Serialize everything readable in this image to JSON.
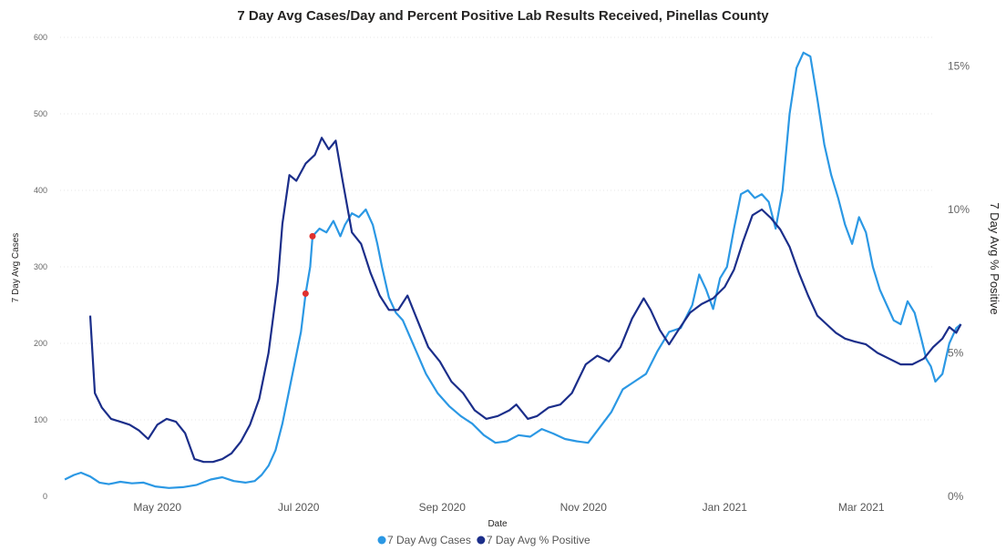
{
  "chart_data": {
    "type": "line",
    "title": "7 Day Avg Cases/Day and Percent Positive Lab Results Received, Pinellas County",
    "xlabel": "Date",
    "ylabel": "7 Day Avg Cases",
    "y2label": "7 Day Avg % Positive",
    "xlim": [
      "2020-03-20",
      "2021-04-01"
    ],
    "ylim": [
      0,
      600
    ],
    "y2lim": [
      0,
      16
    ],
    "y_ticks": [
      "0",
      "100",
      "200",
      "300",
      "400",
      "500",
      "600"
    ],
    "y2_ticks": [
      "0%",
      "5%",
      "10%",
      "15%"
    ],
    "x_ticks": [
      {
        "label": "May 2020",
        "date": "2020-05-01"
      },
      {
        "label": "Jul 2020",
        "date": "2020-07-01"
      },
      {
        "label": "Sep 2020",
        "date": "2020-09-01"
      },
      {
        "label": "Nov 2020",
        "date": "2020-11-01"
      },
      {
        "label": "Jan 2021",
        "date": "2021-01-01"
      },
      {
        "label": "Mar 2021",
        "date": "2021-03-01"
      }
    ],
    "grid": true,
    "legend_position": "bottom",
    "series": [
      {
        "name": "7 Day Avg Cases",
        "axis": "left",
        "color": "#2B98E4",
        "points": [
          [
            "2020-03-22",
            22
          ],
          [
            "2020-03-26",
            28
          ],
          [
            "2020-03-29",
            31
          ],
          [
            "2020-04-02",
            26
          ],
          [
            "2020-04-06",
            18
          ],
          [
            "2020-04-10",
            16
          ],
          [
            "2020-04-15",
            19
          ],
          [
            "2020-04-20",
            17
          ],
          [
            "2020-04-25",
            18
          ],
          [
            "2020-04-30",
            13
          ],
          [
            "2020-05-06",
            11
          ],
          [
            "2020-05-12",
            12
          ],
          [
            "2020-05-18",
            15
          ],
          [
            "2020-05-24",
            22
          ],
          [
            "2020-05-29",
            25
          ],
          [
            "2020-06-03",
            20
          ],
          [
            "2020-06-08",
            18
          ],
          [
            "2020-06-12",
            20
          ],
          [
            "2020-06-15",
            28
          ],
          [
            "2020-06-18",
            40
          ],
          [
            "2020-06-21",
            60
          ],
          [
            "2020-06-24",
            95
          ],
          [
            "2020-06-27",
            140
          ],
          [
            "2020-06-30",
            185
          ],
          [
            "2020-07-02",
            215
          ],
          [
            "2020-07-04",
            265
          ],
          [
            "2020-07-06",
            300
          ],
          [
            "2020-07-07",
            340
          ],
          [
            "2020-07-10",
            350
          ],
          [
            "2020-07-13",
            345
          ],
          [
            "2020-07-16",
            360
          ],
          [
            "2020-07-19",
            340
          ],
          [
            "2020-07-21",
            355
          ],
          [
            "2020-07-24",
            370
          ],
          [
            "2020-07-27",
            365
          ],
          [
            "2020-07-30",
            375
          ],
          [
            "2020-08-02",
            355
          ],
          [
            "2020-08-04",
            330
          ],
          [
            "2020-08-06",
            300
          ],
          [
            "2020-08-09",
            260
          ],
          [
            "2020-08-12",
            240
          ],
          [
            "2020-08-15",
            230
          ],
          [
            "2020-08-20",
            195
          ],
          [
            "2020-08-25",
            160
          ],
          [
            "2020-08-30",
            135
          ],
          [
            "2020-09-04",
            118
          ],
          [
            "2020-09-09",
            105
          ],
          [
            "2020-09-14",
            95
          ],
          [
            "2020-09-19",
            80
          ],
          [
            "2020-09-24",
            70
          ],
          [
            "2020-09-29",
            72
          ],
          [
            "2020-10-04",
            80
          ],
          [
            "2020-10-09",
            78
          ],
          [
            "2020-10-14",
            88
          ],
          [
            "2020-10-19",
            82
          ],
          [
            "2020-10-24",
            75
          ],
          [
            "2020-10-29",
            72
          ],
          [
            "2020-11-03",
            70
          ],
          [
            "2020-11-08",
            90
          ],
          [
            "2020-11-13",
            110
          ],
          [
            "2020-11-18",
            140
          ],
          [
            "2020-11-23",
            150
          ],
          [
            "2020-11-28",
            160
          ],
          [
            "2020-12-03",
            190
          ],
          [
            "2020-12-08",
            215
          ],
          [
            "2020-12-13",
            220
          ],
          [
            "2020-12-18",
            250
          ],
          [
            "2020-12-21",
            290
          ],
          [
            "2020-12-24",
            270
          ],
          [
            "2020-12-27",
            245
          ],
          [
            "2020-12-30",
            285
          ],
          [
            "2021-01-02",
            300
          ],
          [
            "2021-01-05",
            350
          ],
          [
            "2021-01-08",
            395
          ],
          [
            "2021-01-11",
            400
          ],
          [
            "2021-01-14",
            390
          ],
          [
            "2021-01-17",
            395
          ],
          [
            "2021-01-20",
            385
          ],
          [
            "2021-01-23",
            350
          ],
          [
            "2021-01-26",
            400
          ],
          [
            "2021-01-29",
            500
          ],
          [
            "2021-02-01",
            560
          ],
          [
            "2021-02-04",
            580
          ],
          [
            "2021-02-07",
            575
          ],
          [
            "2021-02-10",
            520
          ],
          [
            "2021-02-13",
            460
          ],
          [
            "2021-02-16",
            420
          ],
          [
            "2021-02-19",
            390
          ],
          [
            "2021-02-22",
            355
          ],
          [
            "2021-02-25",
            330
          ],
          [
            "2021-02-28",
            365
          ],
          [
            "2021-03-03",
            345
          ],
          [
            "2021-03-06",
            300
          ],
          [
            "2021-03-09",
            270
          ],
          [
            "2021-03-12",
            250
          ],
          [
            "2021-03-15",
            230
          ],
          [
            "2021-03-18",
            225
          ],
          [
            "2021-03-21",
            255
          ],
          [
            "2021-03-24",
            240
          ],
          [
            "2021-03-27",
            205
          ],
          [
            "2021-03-29",
            180
          ],
          [
            "2021-03-31",
            170
          ],
          [
            "2021-04-02",
            150
          ],
          [
            "2021-04-05",
            160
          ],
          [
            "2021-04-08",
            200
          ],
          [
            "2021-04-11",
            220
          ],
          [
            "2021-04-13",
            225
          ]
        ],
        "markers": [
          [
            "2020-07-04",
            265
          ],
          [
            "2020-07-07",
            340
          ]
        ],
        "marker_color": "#E0312E"
      },
      {
        "name": "7 Day Avg % Positive",
        "axis": "right",
        "color": "#1B2E8A",
        "points": [
          [
            "2020-04-02",
            6.3
          ],
          [
            "2020-04-04",
            3.6
          ],
          [
            "2020-04-07",
            3.1
          ],
          [
            "2020-04-11",
            2.7
          ],
          [
            "2020-04-15",
            2.6
          ],
          [
            "2020-04-19",
            2.5
          ],
          [
            "2020-04-23",
            2.3
          ],
          [
            "2020-04-27",
            2.0
          ],
          [
            "2020-05-01",
            2.5
          ],
          [
            "2020-05-05",
            2.7
          ],
          [
            "2020-05-09",
            2.6
          ],
          [
            "2020-05-13",
            2.2
          ],
          [
            "2020-05-17",
            1.3
          ],
          [
            "2020-05-21",
            1.2
          ],
          [
            "2020-05-25",
            1.2
          ],
          [
            "2020-05-29",
            1.3
          ],
          [
            "2020-06-02",
            1.5
          ],
          [
            "2020-06-06",
            1.9
          ],
          [
            "2020-06-10",
            2.5
          ],
          [
            "2020-06-14",
            3.4
          ],
          [
            "2020-06-18",
            5.0
          ],
          [
            "2020-06-22",
            7.5
          ],
          [
            "2020-06-24",
            9.5
          ],
          [
            "2020-06-27",
            11.2
          ],
          [
            "2020-06-30",
            11.0
          ],
          [
            "2020-07-04",
            11.6
          ],
          [
            "2020-07-08",
            11.9
          ],
          [
            "2020-07-11",
            12.5
          ],
          [
            "2020-07-14",
            12.1
          ],
          [
            "2020-07-17",
            12.4
          ],
          [
            "2020-07-20",
            11.0
          ],
          [
            "2020-07-24",
            9.2
          ],
          [
            "2020-07-28",
            8.8
          ],
          [
            "2020-08-01",
            7.8
          ],
          [
            "2020-08-05",
            7.0
          ],
          [
            "2020-08-09",
            6.5
          ],
          [
            "2020-08-13",
            6.5
          ],
          [
            "2020-08-17",
            7.0
          ],
          [
            "2020-08-21",
            6.2
          ],
          [
            "2020-08-26",
            5.2
          ],
          [
            "2020-08-31",
            4.7
          ],
          [
            "2020-09-05",
            4.0
          ],
          [
            "2020-09-10",
            3.6
          ],
          [
            "2020-09-15",
            3.0
          ],
          [
            "2020-09-20",
            2.7
          ],
          [
            "2020-09-25",
            2.8
          ],
          [
            "2020-09-30",
            3.0
          ],
          [
            "2020-10-03",
            3.2
          ],
          [
            "2020-10-08",
            2.7
          ],
          [
            "2020-10-12",
            2.8
          ],
          [
            "2020-10-17",
            3.1
          ],
          [
            "2020-10-22",
            3.2
          ],
          [
            "2020-10-27",
            3.6
          ],
          [
            "2020-11-02",
            4.6
          ],
          [
            "2020-11-07",
            4.9
          ],
          [
            "2020-11-12",
            4.7
          ],
          [
            "2020-11-17",
            5.2
          ],
          [
            "2020-11-22",
            6.2
          ],
          [
            "2020-11-27",
            6.9
          ],
          [
            "2020-11-30",
            6.5
          ],
          [
            "2020-12-04",
            5.8
          ],
          [
            "2020-12-08",
            5.3
          ],
          [
            "2020-12-12",
            5.8
          ],
          [
            "2020-12-17",
            6.4
          ],
          [
            "2020-12-22",
            6.7
          ],
          [
            "2020-12-27",
            6.9
          ],
          [
            "2021-01-01",
            7.3
          ],
          [
            "2021-01-05",
            7.9
          ],
          [
            "2021-01-09",
            8.9
          ],
          [
            "2021-01-13",
            9.8
          ],
          [
            "2021-01-17",
            10.0
          ],
          [
            "2021-01-21",
            9.7
          ],
          [
            "2021-01-25",
            9.3
          ],
          [
            "2021-01-29",
            8.7
          ],
          [
            "2021-02-02",
            7.8
          ],
          [
            "2021-02-06",
            7.0
          ],
          [
            "2021-02-10",
            6.3
          ],
          [
            "2021-02-14",
            6.0
          ],
          [
            "2021-02-18",
            5.7
          ],
          [
            "2021-02-22",
            5.5
          ],
          [
            "2021-02-26",
            5.4
          ],
          [
            "2021-03-03",
            5.3
          ],
          [
            "2021-03-08",
            5.0
          ],
          [
            "2021-03-13",
            4.8
          ],
          [
            "2021-03-18",
            4.6
          ],
          [
            "2021-03-23",
            4.6
          ],
          [
            "2021-03-28",
            4.8
          ],
          [
            "2021-04-01",
            5.2
          ],
          [
            "2021-04-05",
            5.5
          ],
          [
            "2021-04-08",
            5.9
          ],
          [
            "2021-04-11",
            5.7
          ],
          [
            "2021-04-13",
            6.0
          ]
        ]
      }
    ]
  }
}
